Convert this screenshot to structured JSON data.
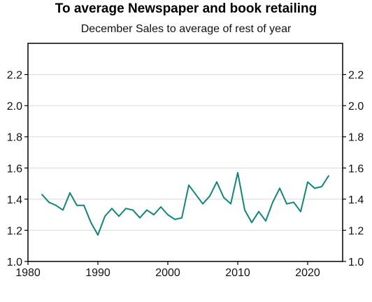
{
  "chart_data": {
    "type": "line",
    "title": "To average Newspaper and book retailing",
    "subtitle": "December Sales to average of rest of year",
    "xlabel": "",
    "ylabel": "",
    "xlim": [
      1980,
      2025
    ],
    "ylim": [
      1.0,
      2.4
    ],
    "x_ticks": [
      "1980",
      "1990",
      "2000",
      "2010",
      "2020"
    ],
    "y_ticks": [
      "1.0",
      "1.2",
      "1.4",
      "1.6",
      "1.8",
      "2.0",
      "2.2"
    ],
    "grid": "horizontal",
    "line_color": "#128579",
    "series": [
      {
        "x": [
          1982,
          1983,
          1984,
          1985,
          1986,
          1987,
          1988,
          1989,
          1990,
          1991,
          1992,
          1993,
          1994,
          1995,
          1996,
          1997,
          1998,
          1999,
          2000,
          2001,
          2002,
          2003,
          2004,
          2005,
          2006,
          2007,
          2008,
          2009,
          2010,
          2011,
          2012,
          2013,
          2014,
          2015,
          2016,
          2017,
          2018,
          2019,
          2020,
          2021,
          2022,
          2023
        ],
        "values": [
          1.43,
          1.38,
          1.36,
          1.33,
          1.44,
          1.36,
          1.36,
          1.25,
          1.17,
          1.29,
          1.34,
          1.29,
          1.34,
          1.33,
          1.28,
          1.33,
          1.3,
          1.35,
          1.3,
          1.27,
          1.28,
          1.49,
          1.43,
          1.37,
          1.42,
          1.51,
          1.41,
          1.37,
          1.57,
          1.33,
          1.25,
          1.32,
          1.26,
          1.38,
          1.47,
          1.37,
          1.38,
          1.32,
          1.51,
          1.47,
          1.48,
          1.55
        ]
      }
    ]
  }
}
